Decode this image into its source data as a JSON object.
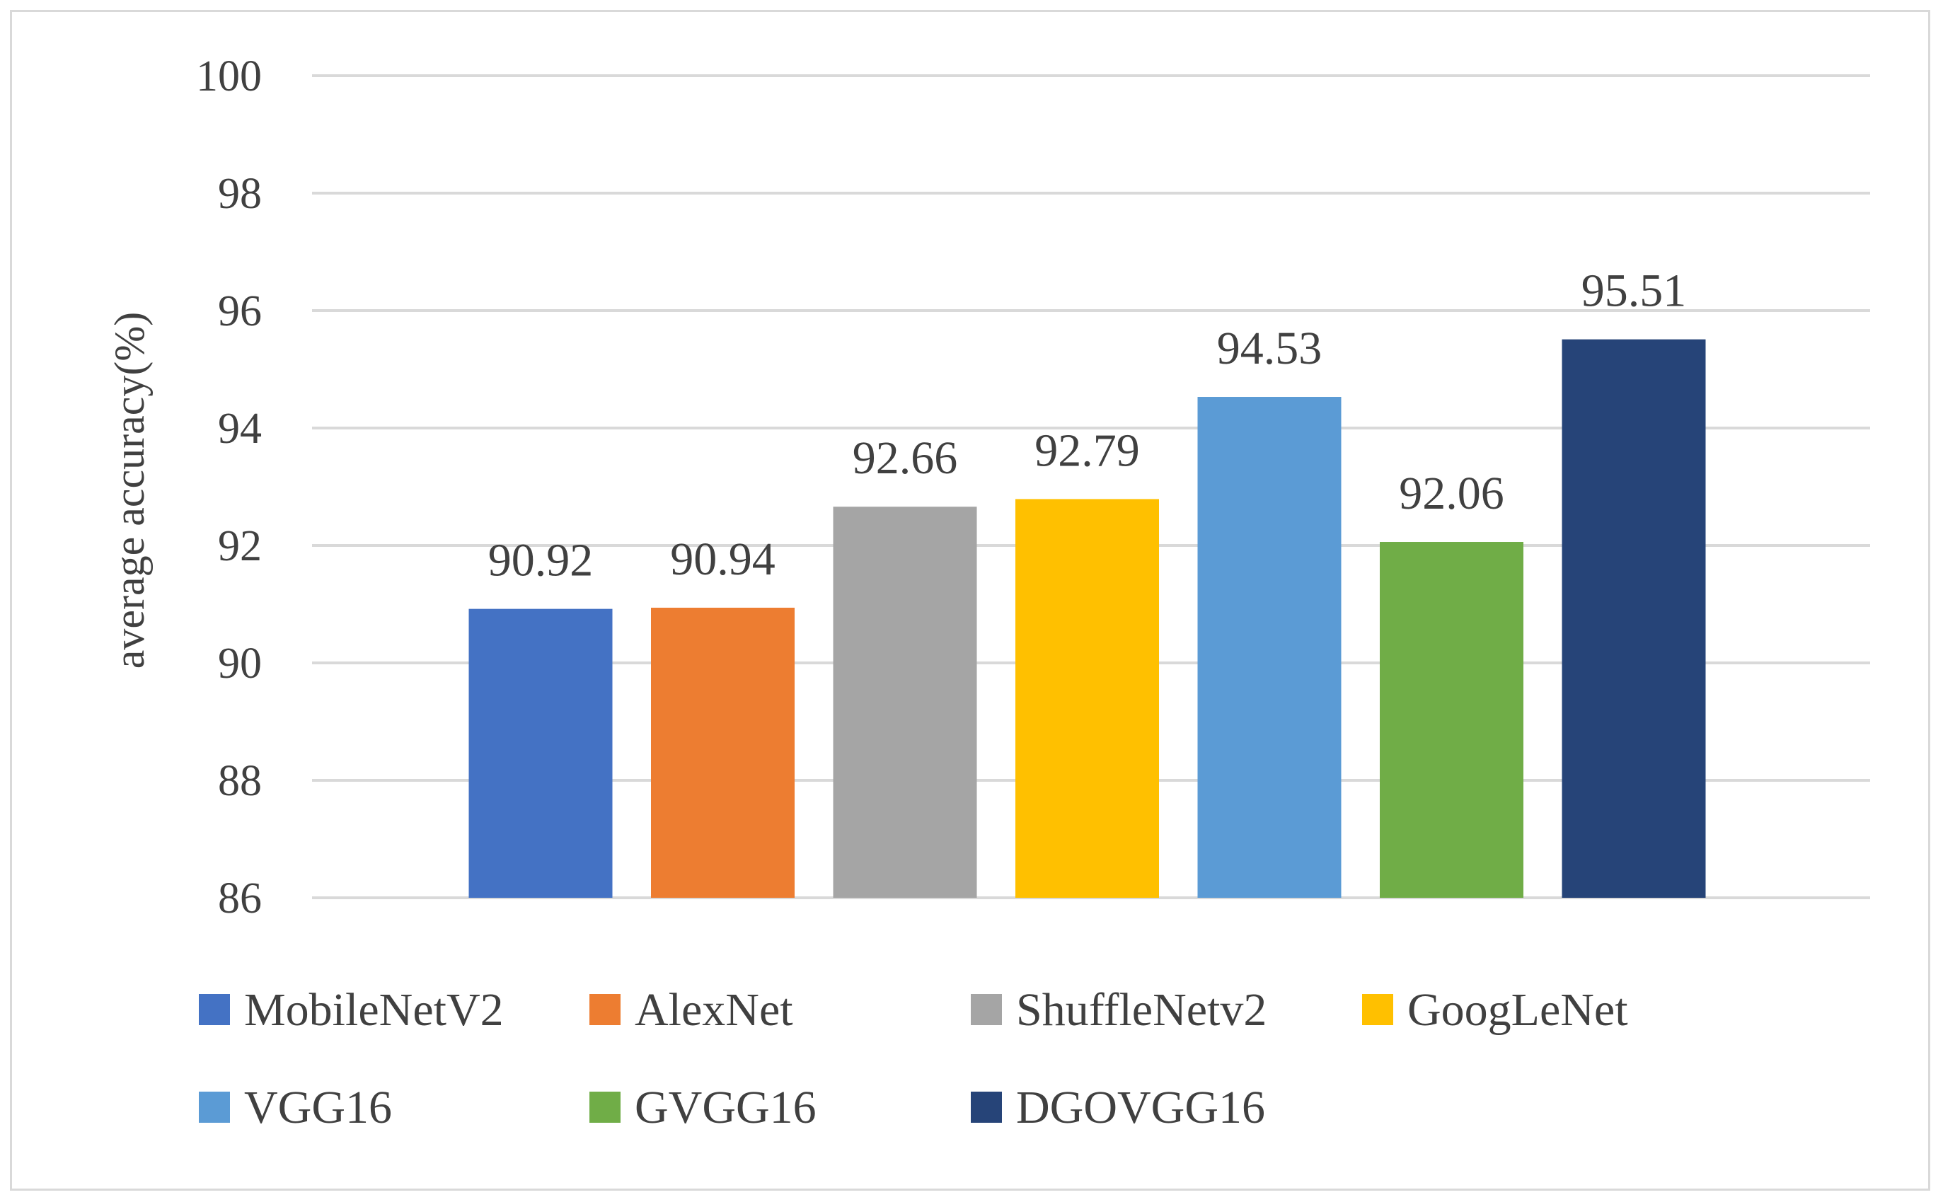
{
  "chart_data": {
    "type": "bar",
    "ylabel": "average accuracy(%)",
    "xlabel": "",
    "ylim": [
      86,
      100
    ],
    "yticks": [
      "100",
      "98",
      "96",
      "94",
      "92",
      "90",
      "88",
      "86"
    ],
    "grid": true,
    "legend_position": "bottom",
    "series": [
      {
        "name": "MobileNetV2",
        "value": 90.92,
        "label": "90.92",
        "color": "#4472c4"
      },
      {
        "name": "AlexNet",
        "value": 90.94,
        "label": "90.94",
        "color": "#ed7d31"
      },
      {
        "name": "ShuffleNetv2",
        "value": 92.66,
        "label": "92.66",
        "color": "#a5a5a5"
      },
      {
        "name": "GoogLeNet",
        "value": 92.79,
        "label": "92.79",
        "color": "#ffc000"
      },
      {
        "name": "VGG16",
        "value": 94.53,
        "label": "94.53",
        "color": "#5b9bd5"
      },
      {
        "name": "GVGG16",
        "value": 92.06,
        "label": "92.06",
        "color": "#70ad47"
      },
      {
        "name": "DGOVGG16",
        "value": 95.51,
        "label": "95.51",
        "color": "#264478"
      }
    ]
  }
}
